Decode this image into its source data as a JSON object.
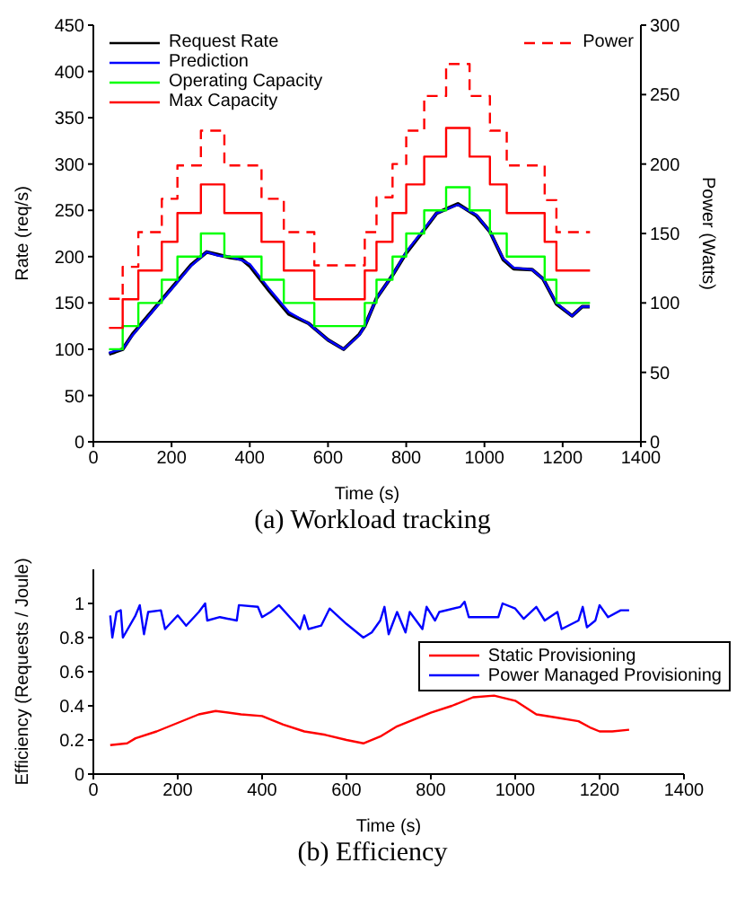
{
  "chart_data": [
    {
      "type": "line",
      "title": "(a)  Workload tracking",
      "xlabel": "Time (s)",
      "ylabel": "Rate (req/s)",
      "y2label": "Power (Watts)",
      "xlim": [
        0,
        1400
      ],
      "xticks": [
        0,
        200,
        400,
        600,
        800,
        1000,
        1200,
        1400
      ],
      "ylim": [
        0,
        450
      ],
      "yticks": [
        0,
        50,
        100,
        150,
        200,
        250,
        300,
        350,
        400,
        450
      ],
      "y2lim": [
        0,
        300
      ],
      "y2ticks": [
        0,
        50,
        100,
        150,
        200,
        250,
        300
      ],
      "legend": "top left",
      "marker": "none",
      "series": [
        {
          "name": "Request Rate",
          "type": "line",
          "color": "#000000",
          "x": [
            40,
            55,
            75,
            100,
            150,
            200,
            250,
            290,
            320,
            350,
            380,
            400,
            450,
            500,
            550,
            600,
            640,
            680,
            694,
            724,
            765,
            800,
            846,
            878,
            932,
            980,
            1014,
            1048,
            1075,
            1122,
            1150,
            1184,
            1224,
            1250,
            1269
          ],
          "values": [
            95,
            97,
            100,
            116,
            141,
            166,
            191,
            205,
            202,
            199,
            197,
            190,
            163,
            138,
            128,
            110,
            100,
            116,
            125,
            155,
            180,
            204,
            229,
            247,
            257,
            244,
            227,
            197,
            187,
            186,
            176,
            149,
            136,
            146,
            146
          ]
        },
        {
          "name": "Prediction",
          "type": "line",
          "color": "#0000ff",
          "x": [
            40,
            55,
            75,
            100,
            150,
            200,
            250,
            290,
            320,
            350,
            380,
            400,
            450,
            500,
            550,
            600,
            640,
            680,
            694,
            724,
            765,
            800,
            846,
            878,
            932,
            980,
            1014,
            1048,
            1075,
            1122,
            1150,
            1184,
            1224,
            1250,
            1269
          ],
          "values": [
            96,
            98,
            100,
            115,
            140,
            165,
            190,
            205,
            201,
            200,
            196,
            192,
            165,
            140,
            128,
            110,
            100,
            115,
            125,
            155,
            180,
            205,
            230,
            247,
            256,
            245,
            227,
            198,
            188,
            186,
            176,
            150,
            136,
            146,
            146
          ]
        },
        {
          "name": "Operating Capacity",
          "type": "step",
          "color": "#00ff00",
          "x": [
            40,
            75,
            115,
            175,
            215,
            275,
            335,
            430,
            487,
            565,
            694,
            724,
            765,
            800,
            846,
            902,
            962,
            1014,
            1057,
            1154,
            1184,
            1270
          ],
          "values": [
            100,
            125,
            150,
            175,
            200,
            225,
            200,
            175,
            150,
            125,
            150,
            175,
            200,
            225,
            250,
            275,
            250,
            225,
            200,
            175,
            150,
            150
          ]
        },
        {
          "name": "Max Capacity",
          "type": "step",
          "color": "#ff0000",
          "x": [
            40,
            75,
            115,
            175,
            215,
            275,
            335,
            430,
            487,
            565,
            694,
            724,
            765,
            800,
            846,
            902,
            962,
            1014,
            1057,
            1154,
            1184,
            1270
          ],
          "values": [
            123,
            154,
            185,
            216,
            247,
            278,
            247,
            216,
            185,
            154,
            185,
            216,
            247,
            278,
            308,
            339,
            308,
            278,
            247,
            216,
            185,
            185
          ]
        },
        {
          "name": "Power",
          "type": "step",
          "axis": "y2",
          "line_style": "dashed",
          "color": "#ff0000",
          "x": [
            40,
            75,
            115,
            175,
            215,
            275,
            335,
            430,
            487,
            565,
            694,
            724,
            765,
            800,
            846,
            902,
            962,
            1014,
            1057,
            1154,
            1184,
            1270
          ],
          "values": [
            103,
            126,
            151,
            175,
            199,
            224,
            199,
            175,
            151,
            127,
            151,
            176,
            200,
            224,
            249,
            272,
            249,
            224,
            199,
            174,
            151,
            151
          ]
        }
      ]
    },
    {
      "type": "line",
      "title": "(b)  Efficiency",
      "xlabel": "Time (s)",
      "ylabel": "Efficiency (Requests / Joule)",
      "xlim": [
        0,
        1400
      ],
      "xticks": [
        0,
        200,
        400,
        600,
        800,
        1000,
        1200,
        1400
      ],
      "ylim": [
        0,
        1.2
      ],
      "yticks": [
        0,
        0.2,
        0.4,
        0.6,
        0.8,
        1
      ],
      "legend": "right",
      "marker": "none",
      "series": [
        {
          "name": "Static Provisioning",
          "color": "#ff0000",
          "x": [
            40,
            80,
            100,
            150,
            200,
            250,
            290,
            350,
            400,
            450,
            500,
            550,
            600,
            640,
            680,
            720,
            800,
            850,
            900,
            950,
            1000,
            1050,
            1100,
            1150,
            1180,
            1200,
            1230,
            1270
          ],
          "values": [
            0.17,
            0.18,
            0.21,
            0.25,
            0.3,
            0.35,
            0.37,
            0.35,
            0.34,
            0.29,
            0.25,
            0.23,
            0.2,
            0.18,
            0.22,
            0.28,
            0.36,
            0.4,
            0.45,
            0.46,
            0.43,
            0.35,
            0.33,
            0.31,
            0.27,
            0.25,
            0.25,
            0.26
          ]
        },
        {
          "name": "Power Managed Provisioning",
          "color": "#0000ff",
          "x": [
            40,
            45,
            55,
            65,
            70,
            100,
            110,
            120,
            130,
            160,
            170,
            200,
            220,
            250,
            265,
            270,
            300,
            340,
            345,
            390,
            400,
            420,
            440,
            480,
            490,
            500,
            510,
            540,
            560,
            600,
            640,
            660,
            680,
            690,
            700,
            720,
            740,
            750,
            780,
            790,
            810,
            820,
            870,
            880,
            890,
            960,
            970,
            1000,
            1020,
            1050,
            1070,
            1100,
            1110,
            1150,
            1160,
            1170,
            1190,
            1200,
            1220,
            1250,
            1270
          ],
          "values": [
            0.93,
            0.8,
            0.95,
            0.96,
            0.8,
            0.93,
            0.99,
            0.82,
            0.95,
            0.96,
            0.85,
            0.93,
            0.87,
            0.95,
            1,
            0.9,
            0.92,
            0.9,
            0.99,
            0.98,
            0.92,
            0.95,
            0.99,
            0.88,
            0.85,
            0.93,
            0.85,
            0.87,
            0.97,
            0.88,
            0.8,
            0.83,
            0.9,
            0.98,
            0.82,
            0.95,
            0.83,
            0.95,
            0.85,
            0.98,
            0.9,
            0.95,
            0.98,
            1.01,
            0.92,
            0.92,
            1,
            0.97,
            0.91,
            0.98,
            0.9,
            0.95,
            0.85,
            0.9,
            0.98,
            0.86,
            0.9,
            0.99,
            0.92,
            0.96,
            0.96
          ]
        }
      ]
    }
  ]
}
